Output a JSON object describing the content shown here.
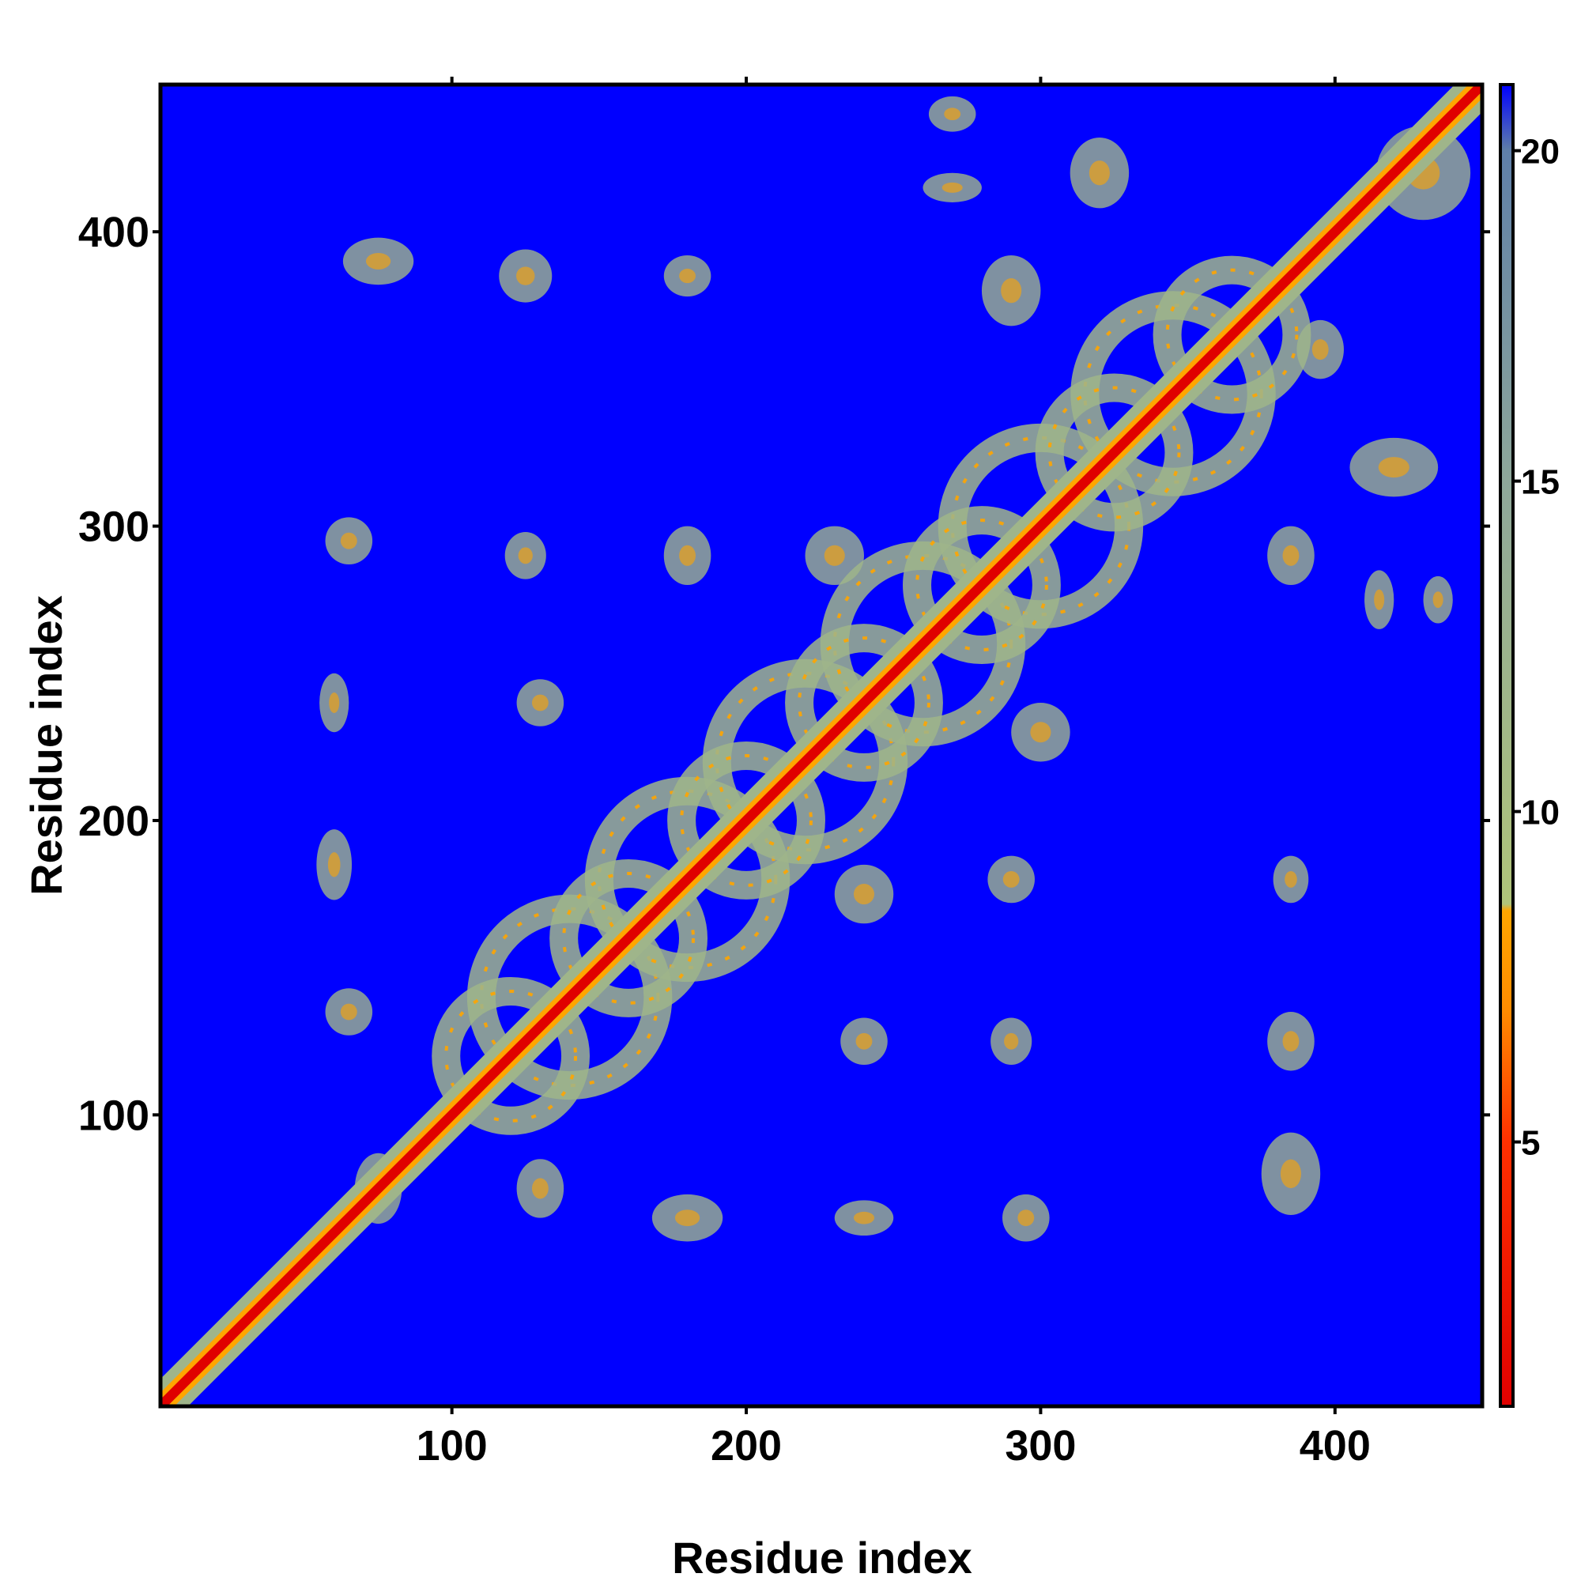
{
  "chart_data": {
    "type": "heatmap",
    "title": "",
    "xlabel": "Residue index",
    "ylabel": "Residue index",
    "xlim": [
      1,
      450
    ],
    "ylim": [
      1,
      450
    ],
    "x_ticks": [
      100,
      200,
      300,
      400
    ],
    "y_ticks": [
      100,
      200,
      300,
      400
    ],
    "colorbar": {
      "range": [
        1,
        21
      ],
      "ticks": [
        5,
        10,
        15,
        20
      ],
      "stops": [
        {
          "value": 1,
          "color": "#e00000"
        },
        {
          "value": 5,
          "color": "#ff3000"
        },
        {
          "value": 7,
          "color": "#ff8c00"
        },
        {
          "value": 8.5,
          "color": "#ffa500"
        },
        {
          "value": 8.6,
          "color": "#b0c47a"
        },
        {
          "value": 15,
          "color": "#8ea79a"
        },
        {
          "value": 20,
          "color": "#5f7fa8"
        },
        {
          "value": 21,
          "color": "#0000ff"
        }
      ]
    },
    "background_value": 21,
    "background_color": "#0000ff",
    "diagonal": {
      "value": 1,
      "core_color": "#e00000",
      "band_color": "#ffa500",
      "halo_color": "#9fb58a",
      "width_residues": 6
    },
    "contact_features": [
      {
        "type": "ring",
        "center": [
          140,
          140
        ],
        "radius": 30
      },
      {
        "type": "ring",
        "center": [
          180,
          180
        ],
        "radius": 30
      },
      {
        "type": "ring",
        "center": [
          220,
          220
        ],
        "radius": 30
      },
      {
        "type": "ring",
        "center": [
          260,
          260
        ],
        "radius": 30
      },
      {
        "type": "ring",
        "center": [
          300,
          300
        ],
        "radius": 30
      },
      {
        "type": "ring",
        "center": [
          345,
          345
        ],
        "radius": 30
      },
      {
        "type": "ring",
        "center": [
          120,
          120
        ],
        "radius": 22
      },
      {
        "type": "ring",
        "center": [
          160,
          160
        ],
        "radius": 22
      },
      {
        "type": "ring",
        "center": [
          200,
          200
        ],
        "radius": 22
      },
      {
        "type": "ring",
        "center": [
          240,
          240
        ],
        "radius": 22
      },
      {
        "type": "ring",
        "center": [
          280,
          280
        ],
        "radius": 22
      },
      {
        "type": "ring",
        "center": [
          325,
          325
        ],
        "radius": 22
      },
      {
        "type": "ring",
        "center": [
          365,
          365
        ],
        "radius": 22
      },
      {
        "type": "blob",
        "center": [
          75,
          390
        ],
        "rx": 12,
        "ry": 8
      },
      {
        "type": "blob",
        "center": [
          125,
          385
        ],
        "rx": 9,
        "ry": 9
      },
      {
        "type": "blob",
        "center": [
          180,
          385
        ],
        "rx": 8,
        "ry": 7
      },
      {
        "type": "blob",
        "center": [
          65,
          295
        ],
        "rx": 8,
        "ry": 8
      },
      {
        "type": "blob",
        "center": [
          125,
          290
        ],
        "rx": 7,
        "ry": 8
      },
      {
        "type": "blob",
        "center": [
          180,
          290
        ],
        "rx": 8,
        "ry": 10
      },
      {
        "type": "blob",
        "center": [
          60,
          240
        ],
        "rx": 5,
        "ry": 10
      },
      {
        "type": "blob",
        "center": [
          60,
          185
        ],
        "rx": 6,
        "ry": 12
      },
      {
        "type": "blob",
        "center": [
          65,
          135
        ],
        "rx": 8,
        "ry": 8
      },
      {
        "type": "blob",
        "center": [
          130,
          240
        ],
        "rx": 8,
        "ry": 8
      },
      {
        "type": "blob",
        "center": [
          180,
          65
        ],
        "rx": 12,
        "ry": 8
      },
      {
        "type": "blob",
        "center": [
          240,
          65
        ],
        "rx": 10,
        "ry": 6
      },
      {
        "type": "blob",
        "center": [
          295,
          65
        ],
        "rx": 8,
        "ry": 8
      },
      {
        "type": "blob",
        "center": [
          385,
          80
        ],
        "rx": 10,
        "ry": 14
      },
      {
        "type": "blob",
        "center": [
          385,
          125
        ],
        "rx": 8,
        "ry": 10
      },
      {
        "type": "blob",
        "center": [
          385,
          180
        ],
        "rx": 6,
        "ry": 8
      },
      {
        "type": "blob",
        "center": [
          290,
          180
        ],
        "rx": 8,
        "ry": 8
      },
      {
        "type": "blob",
        "center": [
          290,
          125
        ],
        "rx": 7,
        "ry": 8
      },
      {
        "type": "blob",
        "center": [
          240,
          125
        ],
        "rx": 8,
        "ry": 8
      },
      {
        "type": "blob",
        "center": [
          75,
          75
        ],
        "rx": 8,
        "ry": 12
      },
      {
        "type": "blob",
        "center": [
          130,
          75
        ],
        "rx": 8,
        "ry": 10
      },
      {
        "type": "blob",
        "center": [
          320,
          420
        ],
        "rx": 10,
        "ry": 12
      },
      {
        "type": "blob",
        "center": [
          270,
          415
        ],
        "rx": 10,
        "ry": 5
      },
      {
        "type": "blob",
        "center": [
          270,
          440
        ],
        "rx": 8,
        "ry": 6
      },
      {
        "type": "blob",
        "center": [
          385,
          290
        ],
        "rx": 8,
        "ry": 10
      },
      {
        "type": "blob",
        "center": [
          415,
          275
        ],
        "rx": 5,
        "ry": 10
      },
      {
        "type": "blob",
        "center": [
          435,
          275
        ],
        "rx": 5,
        "ry": 8
      },
      {
        "type": "blob",
        "center": [
          420,
          320
        ],
        "rx": 15,
        "ry": 10
      },
      {
        "type": "blob",
        "center": [
          395,
          360
        ],
        "rx": 8,
        "ry": 10
      },
      {
        "type": "blob",
        "center": [
          300,
          230
        ],
        "rx": 10,
        "ry": 10
      },
      {
        "type": "blob",
        "center": [
          230,
          290
        ],
        "rx": 10,
        "ry": 10
      },
      {
        "type": "blob",
        "center": [
          290,
          380
        ],
        "rx": 10,
        "ry": 12
      },
      {
        "type": "blob",
        "center": [
          240,
          175
        ],
        "rx": 10,
        "ry": 10
      },
      {
        "type": "blob",
        "center": [
          430,
          420
        ],
        "rx": 16,
        "ry": 16
      }
    ]
  }
}
